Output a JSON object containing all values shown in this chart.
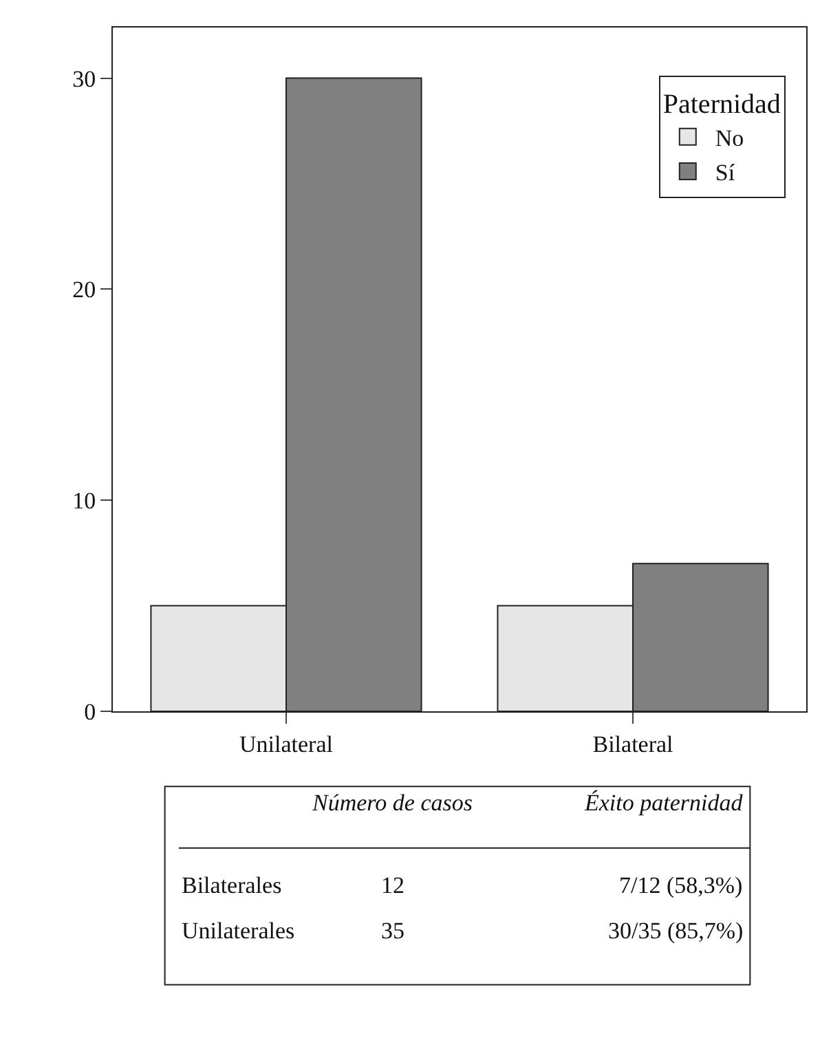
{
  "chart_data": {
    "type": "bar",
    "categories": [
      "Unilateral",
      "Bilateral"
    ],
    "series": [
      {
        "name": "No",
        "color": "#e6e6e6",
        "values": [
          5,
          5
        ]
      },
      {
        "name": "Sí",
        "color": "#808080",
        "values": [
          30,
          7
        ]
      }
    ],
    "ylim": [
      0,
      32.4
    ],
    "yticks": [
      0,
      10,
      20,
      30
    ],
    "legend": "top right",
    "legend_title": "Paternidad",
    "annotations": [
      "Número de casos",
      "Éxito paternidad",
      "Bilaterales",
      "12",
      "7/12 (58,3%)",
      "Unilaterales",
      "35",
      "30/35 (85,7%)"
    ]
  }
}
